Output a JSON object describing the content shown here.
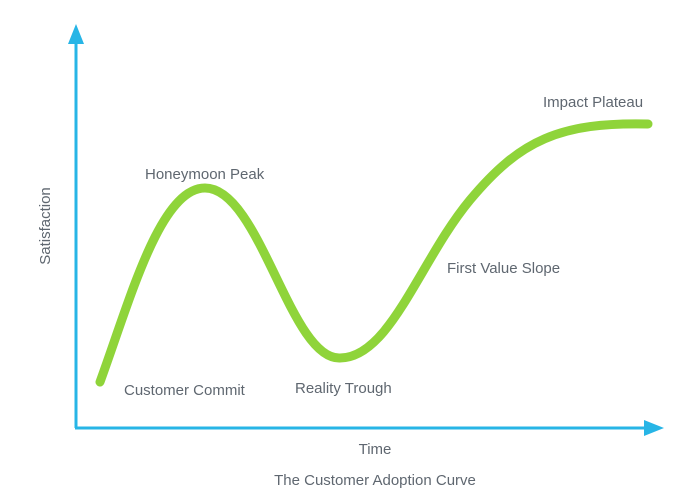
{
  "diagram": {
    "caption": "The Customer Adoption Curve",
    "axes": {
      "y_label": "Satisfaction",
      "x_label": "Time"
    },
    "stages": [
      {
        "label": "Customer Commit"
      },
      {
        "label": "Honeymoon Peak"
      },
      {
        "label": "Reality Trough"
      },
      {
        "label": "First Value Slope"
      },
      {
        "label": "Impact Plateau"
      }
    ],
    "colors": {
      "axis": "#27b5e6",
      "curve": "#8fd43a",
      "text": "#5f6770"
    }
  }
}
